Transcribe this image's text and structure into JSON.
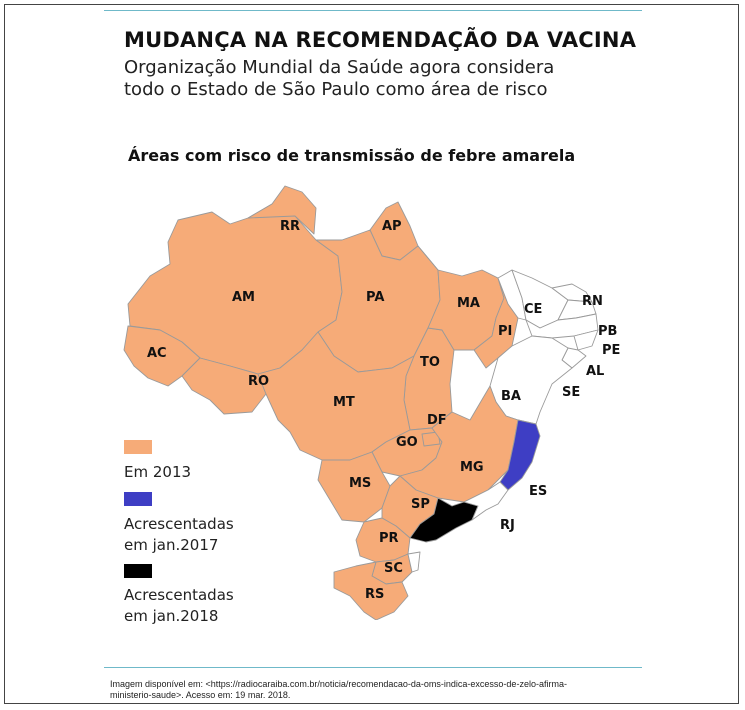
{
  "header": {
    "title": "MUDANÇA NA RECOMENDAÇÃO DA VACINA",
    "subtitle_line1": "Organização Mundial da Saúde agora considera",
    "subtitle_line2": "todo o Estado de São Paulo como área de risco"
  },
  "map": {
    "title": "Áreas com risco de transmissão de febre amarela",
    "colors": {
      "em_2013": "#f6ab78",
      "jan_2017": "#3e3ec4",
      "jan_2018": "#000000",
      "no_risk": "#ffffff",
      "border": "#9a9a9a"
    },
    "states": {
      "AC": "AC",
      "AM": "AM",
      "RR": "RR",
      "AP": "AP",
      "PA": "PA",
      "MA": "MA",
      "PI": "PI",
      "CE": "CE",
      "RN": "RN",
      "PB": "PB",
      "PE": "PE",
      "AL": "AL",
      "SE": "SE",
      "BA": "BA",
      "TO": "TO",
      "RO": "RO",
      "MT": "MT",
      "DF": "DF",
      "GO": "GO",
      "MG": "MG",
      "MS": "MS",
      "SP": "SP",
      "ES": "ES",
      "RJ": "RJ",
      "PR": "PR",
      "SC": "SC",
      "RS": "RS"
    }
  },
  "legend": {
    "em_2013": "Em 2013",
    "jan_2017_line1": "Acrescentadas",
    "jan_2017_line2": "em jan.2017",
    "jan_2018_line1": "Acrescentadas",
    "jan_2018_line2": "em jan.2018"
  },
  "source": {
    "line1": "Imagem disponível em: <https://radiocaraiba.com.br/noticia/recomendacao-da-oms-indica-excesso-de-zelo-afirma-",
    "line2": "ministerio-saude>. Acesso em: 19 mar. 2018."
  }
}
